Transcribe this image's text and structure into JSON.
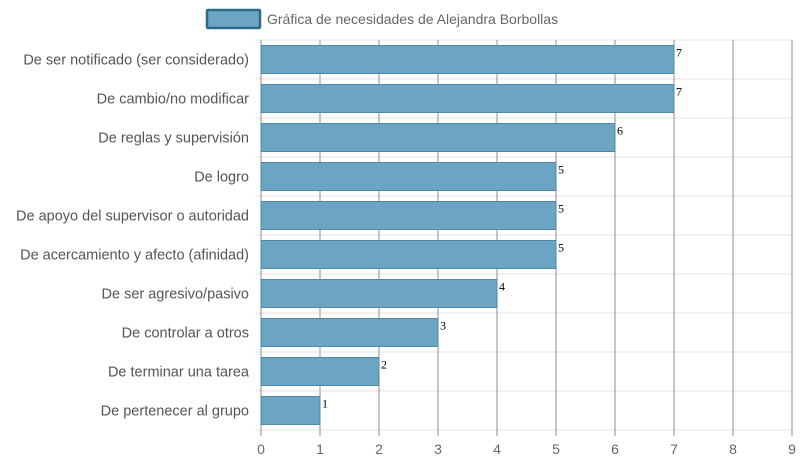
{
  "chart_data": {
    "type": "bar",
    "orientation": "horizontal",
    "categories": [
      "De ser notificado (ser considerado)",
      "De cambio/no modificar",
      "De reglas y supervisión",
      "De logro",
      "De apoyo del supervisor o autoridad",
      "De acercamiento y afecto (afinidad)",
      "De ser agresivo/pasivo",
      "De controlar a otros",
      "De terminar una tarea",
      "De pertenecer al grupo"
    ],
    "series": [
      {
        "name": "Gráfica de necesidades de Alejandra Borbollas",
        "values": [
          7,
          7,
          6,
          5,
          5,
          5,
          4,
          3,
          2,
          1
        ]
      }
    ],
    "xlim": [
      0,
      9
    ],
    "ticks": [
      0,
      1,
      2,
      3,
      4,
      5,
      6,
      7,
      8,
      9
    ],
    "tick_labels": [
      "0",
      "1",
      "2",
      "3",
      "4",
      "5",
      "6",
      "7",
      "8",
      "9"
    ],
    "data_labels": [
      "7",
      "7",
      "6",
      "5",
      "5",
      "5",
      "4",
      "3",
      "2",
      "1"
    ],
    "grid": true,
    "legend_position": "top-center",
    "colors": {
      "bar_fill": "#6ba5c3",
      "bar_stroke": "#4f88a6",
      "legend_fill": "#6ba5c3",
      "legend_stroke": "#2d6a8a",
      "vertical_grid": "#8f8f8f",
      "horizontal_grid": "#e3e3e3",
      "axis": "#8f8f8f"
    }
  }
}
